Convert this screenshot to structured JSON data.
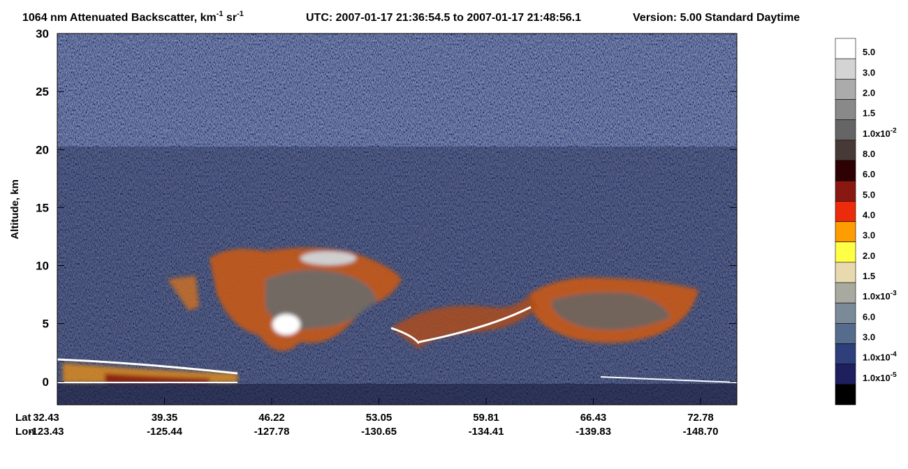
{
  "chart_data": {
    "type": "curtain",
    "title": {
      "product": "1064 nm Attenuated Backscatter, km",
      "unit_exp_1": "-1",
      "unit_sr": " sr",
      "unit_exp_2": "-1",
      "time": "UTC:  2007-01-17 21:36:54.5  to  2007-01-17 21:48:56.1",
      "version": "Version: 5.00  Standard  Daytime"
    },
    "y_label": "Altitude, km",
    "ylim": [
      -2,
      30
    ],
    "yticks": [
      0,
      5,
      10,
      15,
      20,
      25,
      30
    ],
    "x_row_labels": [
      "Lat",
      "Lon"
    ],
    "lat": [
      "32.43",
      "39.35",
      "46.22",
      "53.05",
      "59.81",
      "66.43",
      "72.78"
    ],
    "lon": [
      "-123.43",
      "-125.44",
      "-127.78",
      "-130.65",
      "-134.41",
      "-139.83",
      "-148.70"
    ],
    "colorbar": {
      "colors": [
        "#ffffff",
        "#d4d4d4",
        "#ababab",
        "#898989",
        "#656565",
        "#463936",
        "#2e0202",
        "#8a1812",
        "#ec2b0c",
        "#ff9c00",
        "#ffff45",
        "#e8d9ae",
        "#a9aa9f",
        "#7a8a98",
        "#566c8d",
        "#2f3f7b",
        "#1d1f5e",
        "#000000"
      ],
      "labels": [
        {
          "text": "5.0"
        },
        {
          "text": "3.0"
        },
        {
          "text": "2.0"
        },
        {
          "text": "1.5"
        },
        {
          "text": "1.0x10",
          "sup": "-2"
        },
        {
          "text": "8.0"
        },
        {
          "text": "6.0"
        },
        {
          "text": "5.0"
        },
        {
          "text": "4.0"
        },
        {
          "text": "3.0"
        },
        {
          "text": "2.0"
        },
        {
          "text": "1.5"
        },
        {
          "text": "1.0x10",
          "sup": "-3"
        },
        {
          "text": "6.0"
        },
        {
          "text": "3.0"
        },
        {
          "text": "1.0x10",
          "sup": "-4"
        },
        {
          "text": "1.0x10",
          "sup": "-5"
        }
      ]
    }
  }
}
